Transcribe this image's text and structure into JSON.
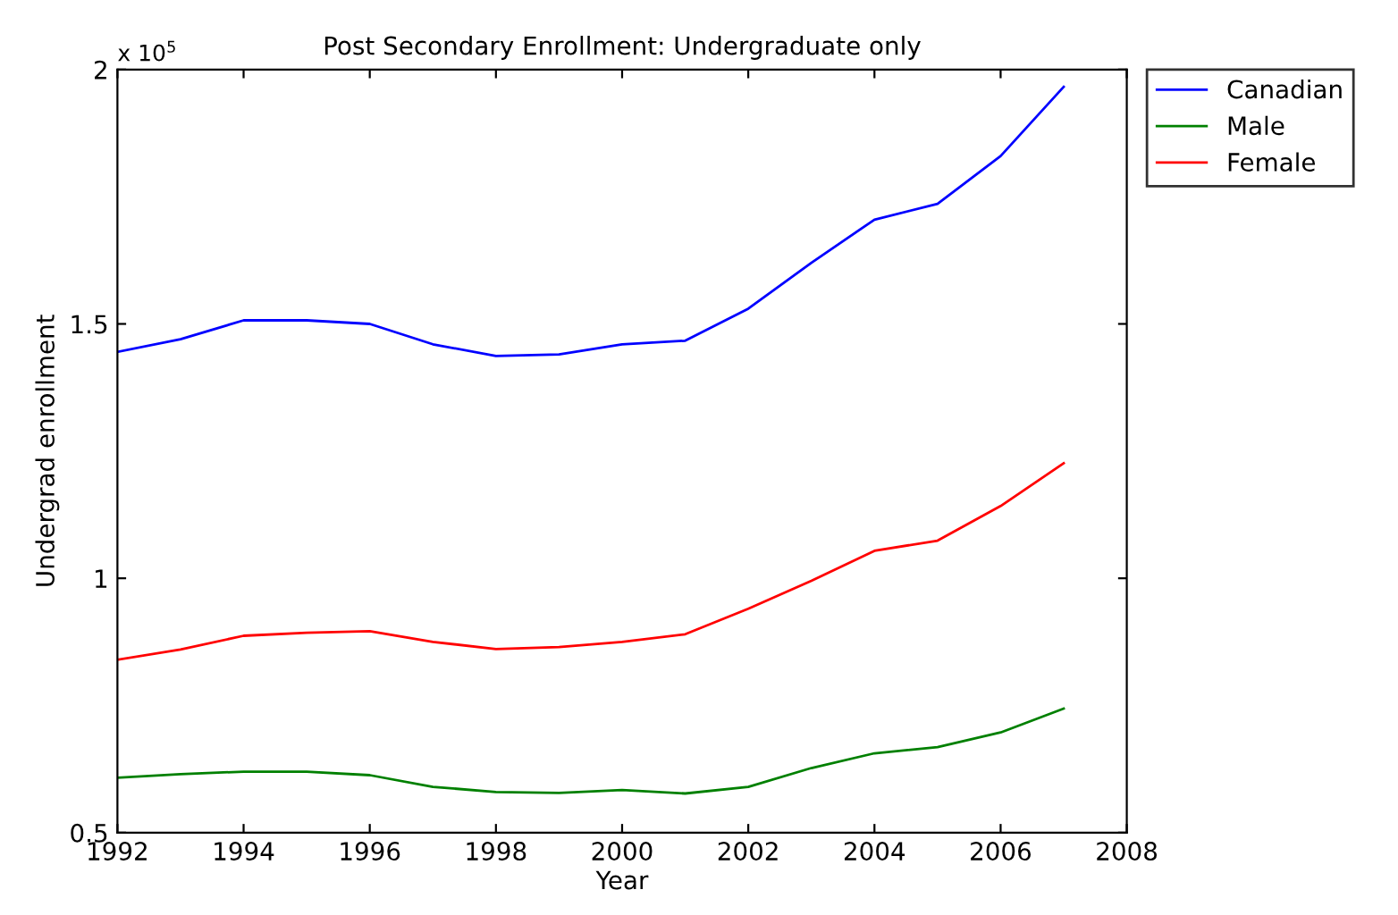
{
  "chart_data": {
    "type": "line",
    "title": "Post Secondary Enrollment: Undergraduate only",
    "xlabel": "Year",
    "ylabel": "Undergrad enrollment",
    "annotations": [
      "x 10$^{5}$"
    ],
    "x": [
      1992,
      1993,
      1994,
      1995,
      1996,
      1997,
      1998,
      1999,
      2000,
      2001,
      2002,
      2003,
      2004,
      2005,
      2006,
      2007
    ],
    "series": [
      {
        "name": "Canadian",
        "color": "#0000ff",
        "values": [
          1.445,
          1.47,
          1.507,
          1.507,
          1.5,
          1.46,
          1.437,
          1.44,
          1.46,
          1.467,
          1.53,
          1.62,
          1.705,
          1.736,
          1.83,
          1.966
        ]
      },
      {
        "name": "Male",
        "color": "#008000",
        "values": [
          0.608,
          0.615,
          0.62,
          0.62,
          0.613,
          0.59,
          0.58,
          0.578,
          0.584,
          0.577,
          0.59,
          0.627,
          0.656,
          0.668,
          0.697,
          0.744
        ]
      },
      {
        "name": "Female",
        "color": "#ff0000",
        "values": [
          0.84,
          0.86,
          0.887,
          0.893,
          0.896,
          0.875,
          0.861,
          0.865,
          0.875,
          0.89,
          0.94,
          0.995,
          1.054,
          1.074,
          1.142,
          1.226
        ]
      }
    ],
    "xlim": [
      1992,
      2008
    ],
    "xticks": [
      1992,
      1994,
      1996,
      1998,
      2000,
      2002,
      2004,
      2006,
      2008
    ],
    "ylim": [
      0.5,
      2
    ],
    "yticks": [
      0.5,
      1,
      1.5,
      2
    ],
    "legend": "top right",
    "grid": false
  }
}
